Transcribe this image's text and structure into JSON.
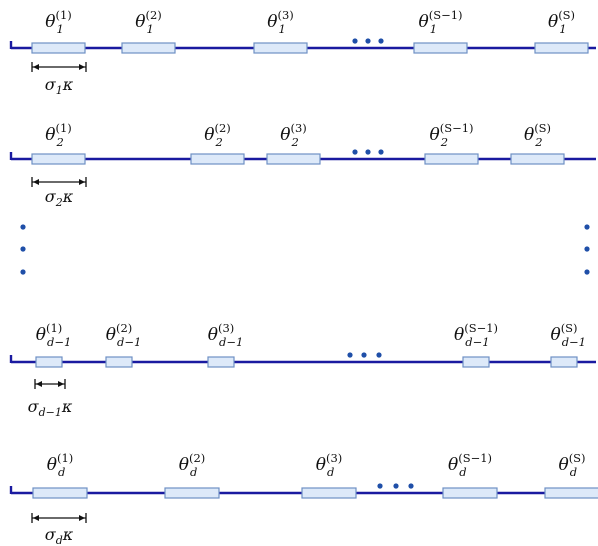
{
  "colors": {
    "axis": "#1a1aa0",
    "box_fill": "#dde9f9",
    "box_stroke": "#6f90c4",
    "dots": "#1f4fa8",
    "text": "#111111"
  },
  "rows": [
    {
      "symbol": "θ",
      "subscript": "1",
      "boxes": [
        {
          "superscript": "(1)"
        },
        {
          "superscript": "(2)"
        },
        {
          "superscript": "(3)"
        },
        {
          "superscript": "(S−1)"
        },
        {
          "superscript": "(S)"
        }
      ],
      "width_label": {
        "symbol": "σ",
        "subscript": "1",
        "suffix": "κ"
      }
    },
    {
      "symbol": "θ",
      "subscript": "2",
      "boxes": [
        {
          "superscript": "(1)"
        },
        {
          "superscript": "(2)"
        },
        {
          "superscript": "(3)"
        },
        {
          "superscript": "(S−1)"
        },
        {
          "superscript": "(S)"
        }
      ],
      "width_label": {
        "symbol": "σ",
        "subscript": "2",
        "suffix": "κ"
      }
    },
    {
      "symbol": "θ",
      "subscript": "d−1",
      "boxes": [
        {
          "superscript": "(1)"
        },
        {
          "superscript": "(2)"
        },
        {
          "superscript": "(3)"
        },
        {
          "superscript": "(S−1)"
        },
        {
          "superscript": "(S)"
        }
      ],
      "width_label": {
        "symbol": "σ",
        "subscript": "d−1",
        "suffix": "κ"
      }
    },
    {
      "symbol": "θ",
      "subscript": "d",
      "boxes": [
        {
          "superscript": "(1)"
        },
        {
          "superscript": "(2)"
        },
        {
          "superscript": "(3)"
        },
        {
          "superscript": "(S−1)"
        },
        {
          "superscript": "(S)"
        }
      ],
      "width_label": {
        "symbol": "σ",
        "subscript": "d",
        "suffix": "κ"
      }
    }
  ]
}
